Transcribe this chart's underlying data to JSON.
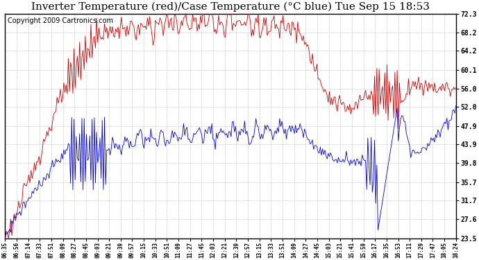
{
  "title": "Inverter Temperature (red)/Case Temperature (°C blue) Tue Sep 15 18:53",
  "copyright": "Copyright 2009 Cartronics.com",
  "yticks": [
    23.5,
    27.6,
    31.7,
    35.7,
    39.8,
    43.9,
    47.9,
    52.0,
    56.0,
    60.1,
    64.2,
    68.2,
    72.3
  ],
  "ymin": 23.5,
  "ymax": 72.3,
  "xtick_labels": [
    "06:35",
    "06:56",
    "07:14",
    "07:33",
    "07:51",
    "08:09",
    "08:27",
    "08:45",
    "09:03",
    "09:21",
    "09:39",
    "09:57",
    "10:15",
    "10:33",
    "10:51",
    "11:09",
    "11:27",
    "11:45",
    "12:03",
    "12:21",
    "12:39",
    "12:57",
    "13:15",
    "13:33",
    "13:51",
    "14:09",
    "14:27",
    "14:45",
    "15:03",
    "15:21",
    "15:41",
    "15:59",
    "16:17",
    "16:35",
    "16:53",
    "17:11",
    "17:29",
    "17:47",
    "18:05",
    "18:24"
  ],
  "bg_color": "#ffffff",
  "plot_bg_color": "#ffffff",
  "grid_color": "#aaaaaa",
  "red_color": "#cc0000",
  "blue_color": "#0000cc",
  "title_fontsize": 11,
  "copyright_fontsize": 7
}
